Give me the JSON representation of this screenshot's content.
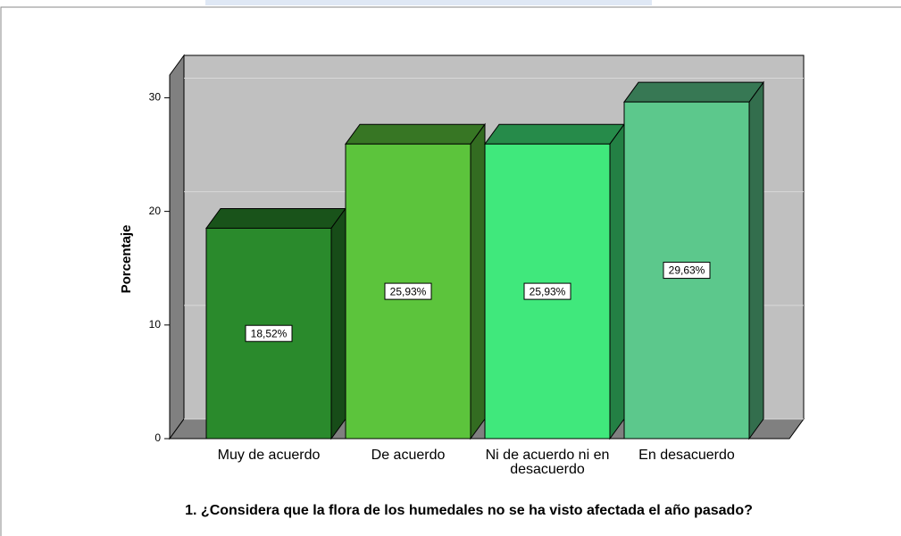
{
  "chart_data": {
    "type": "bar3d",
    "title": "1. ¿Considera que la flora de los humedales no se ha visto afectada el año pasado?",
    "y_label": "Porcentaje",
    "categories": [
      "Muy de acuerdo",
      "De acuerdo",
      "Ni de acuerdo ni en desacuerdo",
      "En desacuerdo"
    ],
    "values": [
      18.52,
      25.93,
      25.93,
      29.63
    ],
    "value_labels": [
      "18,52%",
      "25,93%",
      "25,93%",
      "29,63%"
    ],
    "colors": [
      "#2a8a2c",
      "#5cc43c",
      "#40e87c",
      "#5cc88c"
    ],
    "ylim": [
      0,
      32
    ],
    "yticks": [
      0,
      10,
      20,
      30
    ],
    "grid": true
  }
}
